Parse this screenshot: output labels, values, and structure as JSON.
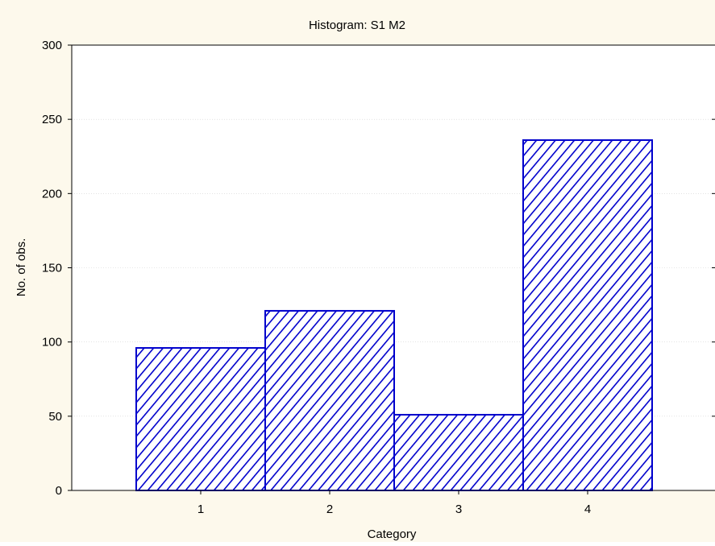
{
  "chart_data": {
    "type": "bar",
    "title": "Histogram: S1 M2",
    "xlabel": "Category",
    "ylabel": "No. of obs.",
    "categories": [
      "1",
      "2",
      "3",
      "4"
    ],
    "values": [
      96,
      121,
      51,
      236
    ],
    "ylim": [
      0,
      300
    ],
    "yticks": [
      0,
      50,
      100,
      150,
      200,
      250,
      300
    ],
    "grid": true,
    "bar_fill": "diagonal-hatch",
    "colors": {
      "bar": "#0000cc",
      "background": "#fdf9ec",
      "plot_area": "#ffffff",
      "grid": "#d0d0d0"
    }
  }
}
